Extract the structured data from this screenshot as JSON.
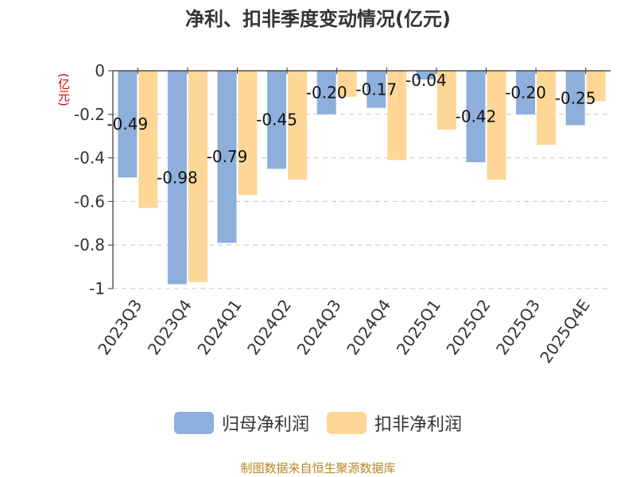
{
  "title": "净利、扣非季度变动情况(亿元)",
  "unit": "(亿元)",
  "source": "制图数据来自恒生聚源数据库",
  "colors": {
    "series1": "#8eaedb",
    "series2": "#fed797",
    "grid": "#c8c8c8",
    "axis": "#333333"
  },
  "chart_data": {
    "type": "bar",
    "title": "净利、扣非季度变动情况(亿元)",
    "ylabel": "(亿元)",
    "ylim": [
      -1,
      0
    ],
    "yticks": [
      0,
      -0.2,
      -0.4,
      -0.6,
      -0.8,
      -1
    ],
    "ytick_labels": [
      "0",
      "-0.2",
      "-0.4",
      "-0.6",
      "-0.8",
      "-1"
    ],
    "grid": true,
    "legend": "bottom",
    "categories": [
      "2023Q3",
      "2023Q4",
      "2024Q1",
      "2024Q2",
      "2024Q3",
      "2024Q4",
      "2025Q1",
      "2025Q2",
      "2025Q3",
      "2025Q4E"
    ],
    "series": [
      {
        "name": "归母净利润",
        "values": [
          -0.49,
          -0.98,
          -0.79,
          -0.45,
          -0.2,
          -0.17,
          -0.04,
          -0.42,
          -0.2,
          -0.25
        ],
        "labels": [
          "-0.49",
          "-0.98",
          "-0.79",
          "-0.45",
          "-0.20",
          "-0.17",
          "-0.04",
          "-0.42",
          "-0.20",
          "-0.25"
        ]
      },
      {
        "name": "扣非净利润",
        "values": [
          -0.63,
          -0.97,
          -0.57,
          -0.5,
          -0.12,
          -0.41,
          -0.27,
          -0.5,
          -0.34,
          -0.14
        ]
      }
    ]
  }
}
